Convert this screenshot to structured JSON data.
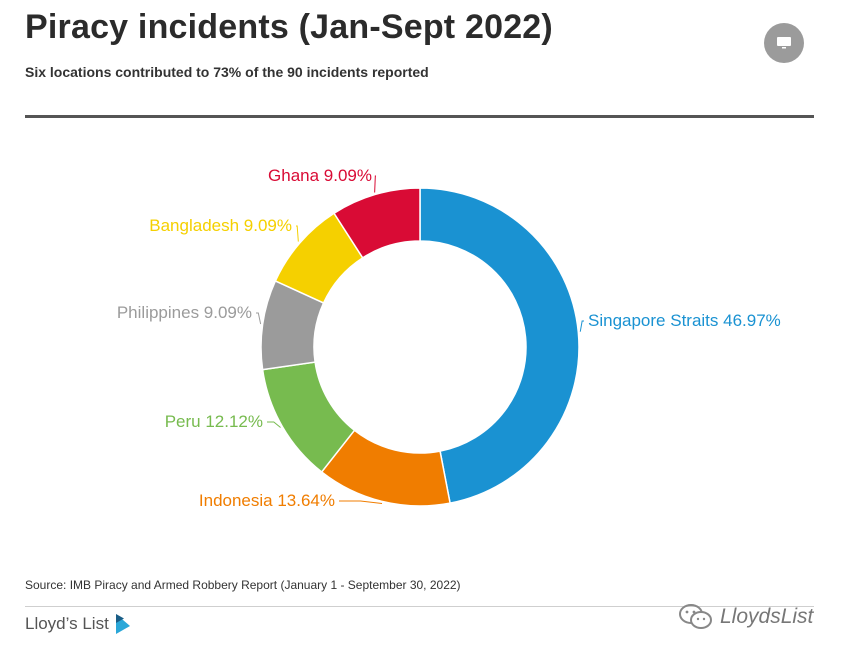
{
  "header": {
    "title": "Piracy incidents (Jan-Sept 2022)",
    "subtitle": "Six locations contributed to 73% of the 90 incidents reported"
  },
  "controls": {
    "screen_button_icon": "monitor-icon"
  },
  "chart_data": {
    "type": "pie",
    "style": "donut",
    "title": "Piracy incidents (Jan-Sept 2022)",
    "slices": [
      {
        "label": "Singapore Straits",
        "value": 46.97,
        "display": "Singapore Straits 46.97%",
        "color": "#1a92d2"
      },
      {
        "label": "Indonesia",
        "value": 13.64,
        "display": "Indonesia 13.64%",
        "color": "#f07d00"
      },
      {
        "label": "Peru",
        "value": 12.12,
        "display": "Peru 12.12%",
        "color": "#77bb4f"
      },
      {
        "label": "Philippines",
        "value": 9.09,
        "display": "Philippines 9.09%",
        "color": "#9b9b9b"
      },
      {
        "label": "Bangladesh",
        "value": 9.09,
        "display": "Bangladesh 9.09%",
        "color": "#f5d000"
      },
      {
        "label": "Ghana",
        "value": 9.09,
        "display": "Ghana 9.09%",
        "color": "#d90b35"
      }
    ],
    "start": "top-clockwise"
  },
  "footer": {
    "source": "Source: IMB Piracy and Armed Robbery Report (January 1 - September 30, 2022)",
    "logo_text": "Lloyd’s List",
    "logo_icon": "lloyds-list-logo-icon",
    "wechat_text": "LloydsList",
    "wechat_icon": "wechat-icon"
  }
}
